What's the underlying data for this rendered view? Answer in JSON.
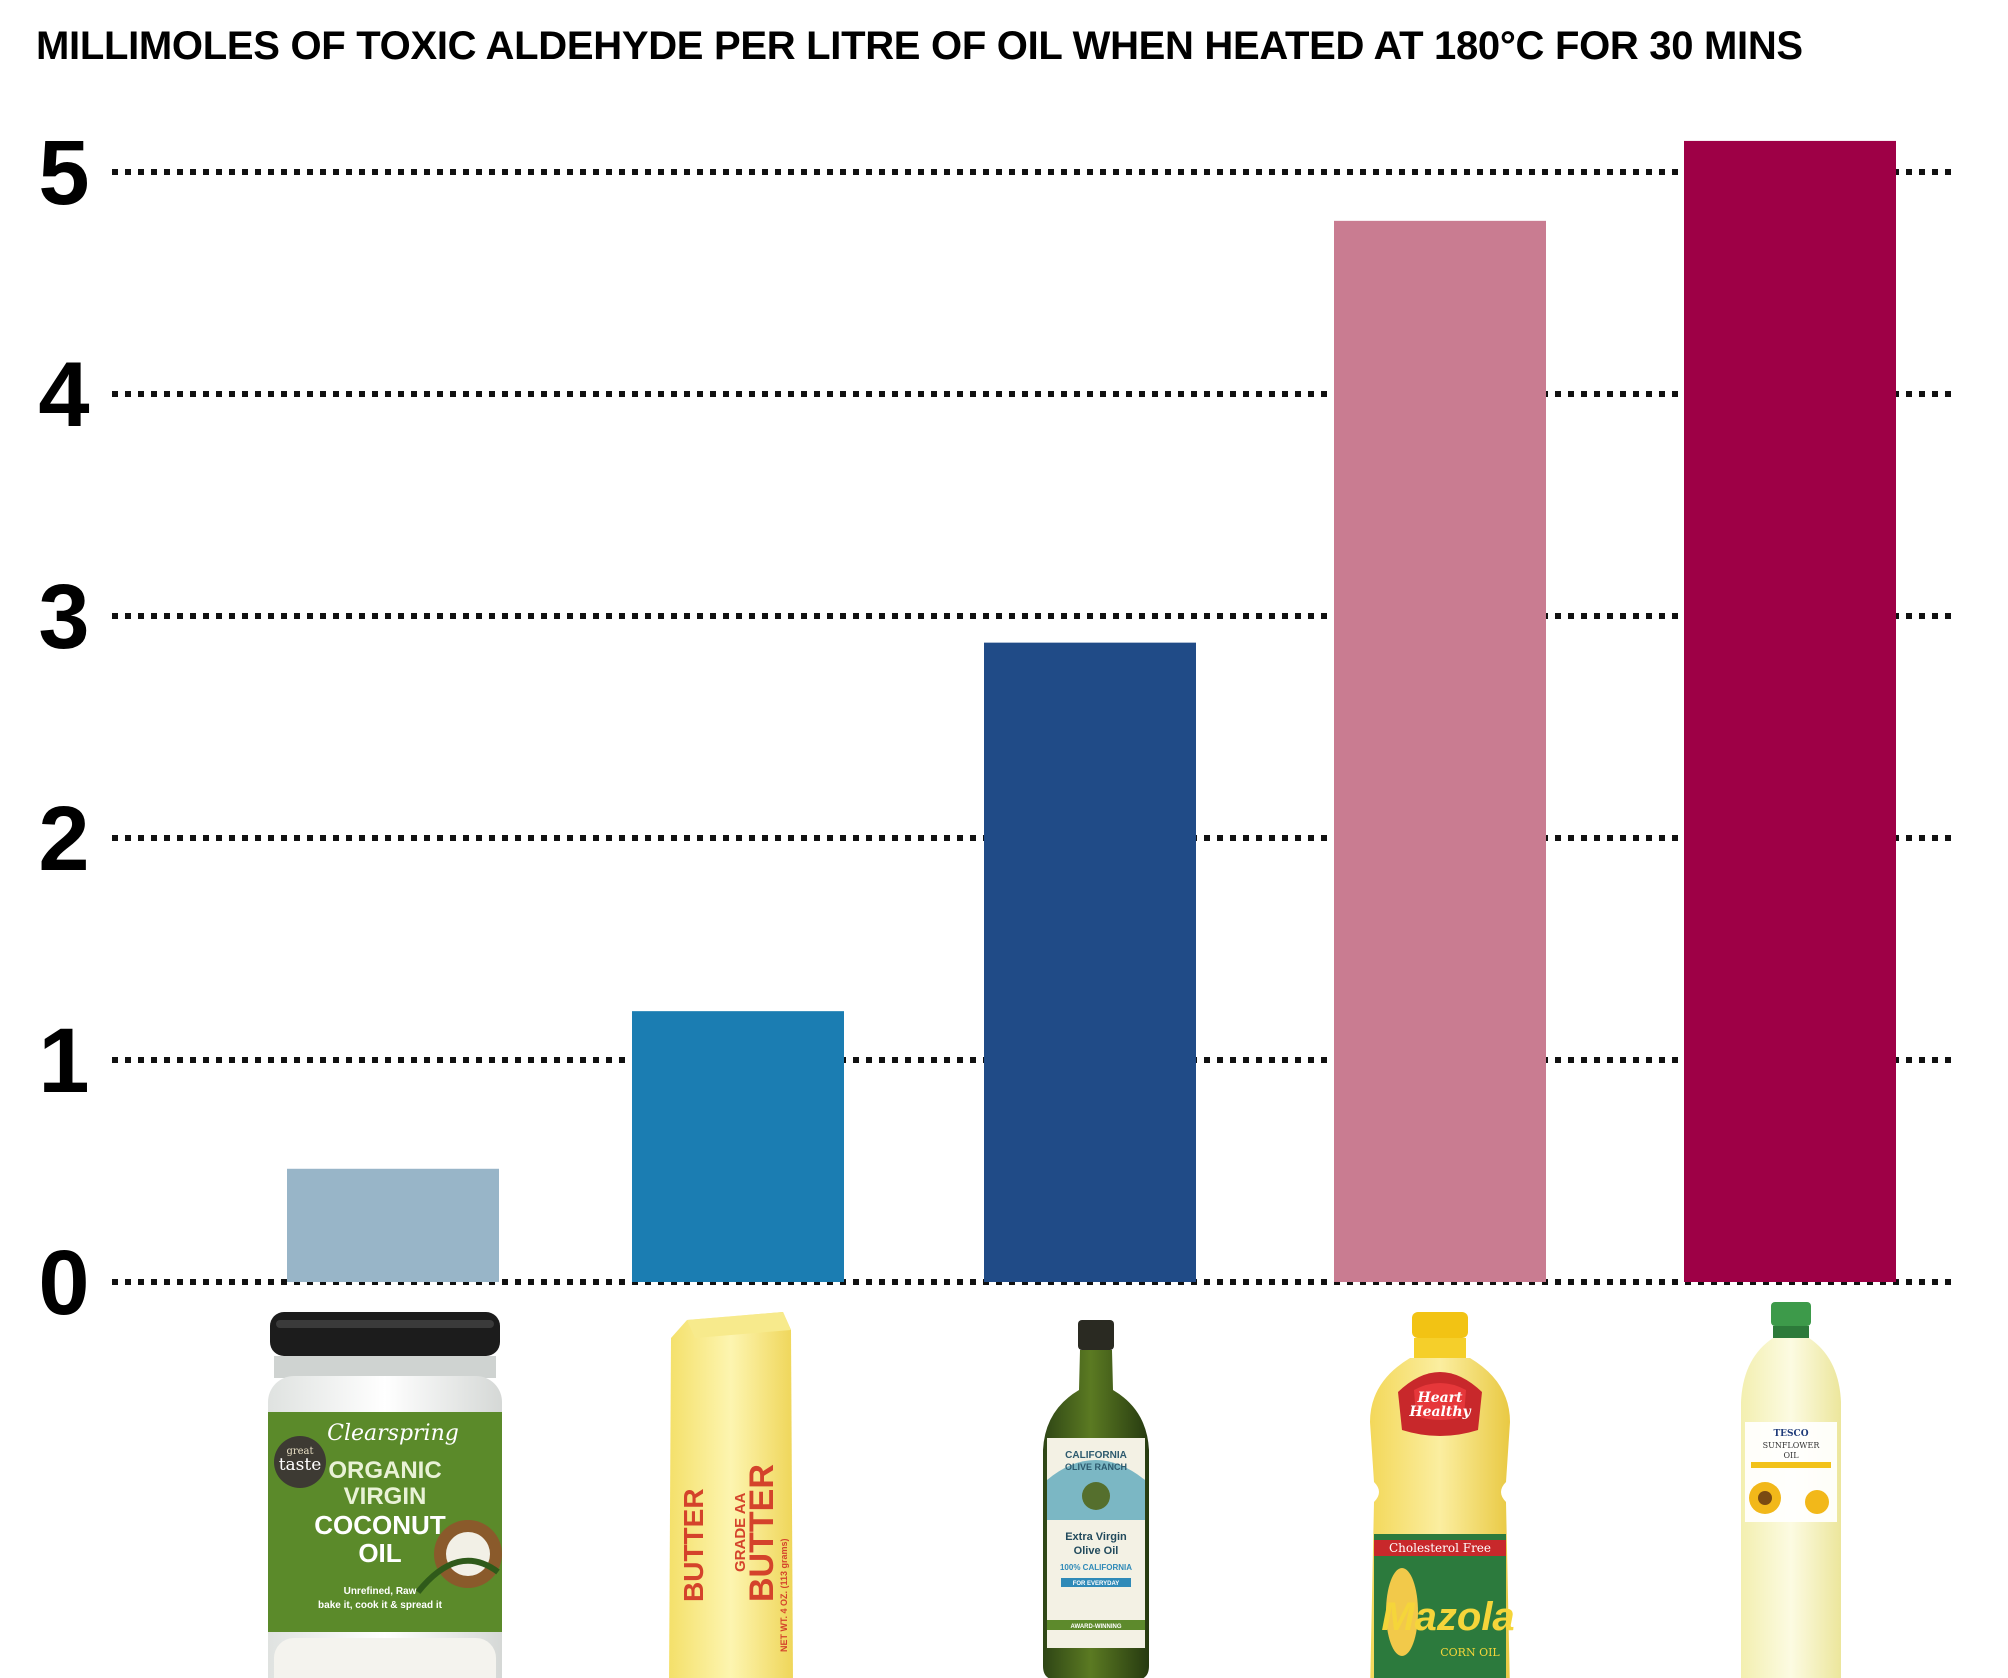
{
  "chart_data": {
    "type": "bar",
    "title": "MILLIMOLES OF TOXIC ALDEHYDE PER LITRE OF OIL WHEN HEATED AT 180°C FOR 30 MINS",
    "xlabel": "",
    "ylabel": "",
    "ylim": [
      0,
      5
    ],
    "yticks": [
      "0",
      "1",
      "2",
      "3",
      "4",
      "5"
    ],
    "grid": true,
    "grid_style": "dotted",
    "categories": [
      "coconut oil",
      "butter",
      "olive oil",
      "corn oil",
      "sunflower oil"
    ],
    "values": [
      0.51,
      1.22,
      2.88,
      4.78,
      5.14
    ],
    "colors": [
      "#98b5c8",
      "#1b7db2",
      "#204b87",
      "#c97c91",
      "#9e0046"
    ]
  },
  "product_labels": {
    "coconut": {
      "icon": "coconut-oil-jar-icon",
      "brand": "Clearspring",
      "badge_top": "great",
      "badge_main": "taste",
      "line1": "ORGANIC",
      "line2": "VIRGIN",
      "line3": "COCONUT",
      "line4": "OIL",
      "small1": "Unrefined, Raw",
      "small2": "bake it, cook it & spread it"
    },
    "butter": {
      "icon": "butter-stick-icon",
      "word1": "BUTTER",
      "grade": "GRADE AA",
      "word2": "BUTTER",
      "weight": "NET WT. 4 OZ. (113 grams)"
    },
    "olive": {
      "icon": "olive-oil-bottle-icon",
      "brand1": "CALIFORNIA",
      "brand2": "OLIVE RANCH",
      "line1": "Extra Virgin",
      "line2": "Olive Oil",
      "line3": "100% CALIFORNIA",
      "line4": "FOR EVERYDAY",
      "line5": "AWARD-WINNING"
    },
    "corn": {
      "icon": "corn-oil-bottle-icon",
      "heart1": "Heart",
      "heart2": "Healthy",
      "banner": "Cholesterol Free",
      "brand": "Mazola",
      "product": "CORN OIL"
    },
    "sunflower": {
      "icon": "sunflower-oil-bottle-icon",
      "brand": "TESCO",
      "line1": "SUNFLOWER",
      "line2": "OIL"
    }
  }
}
